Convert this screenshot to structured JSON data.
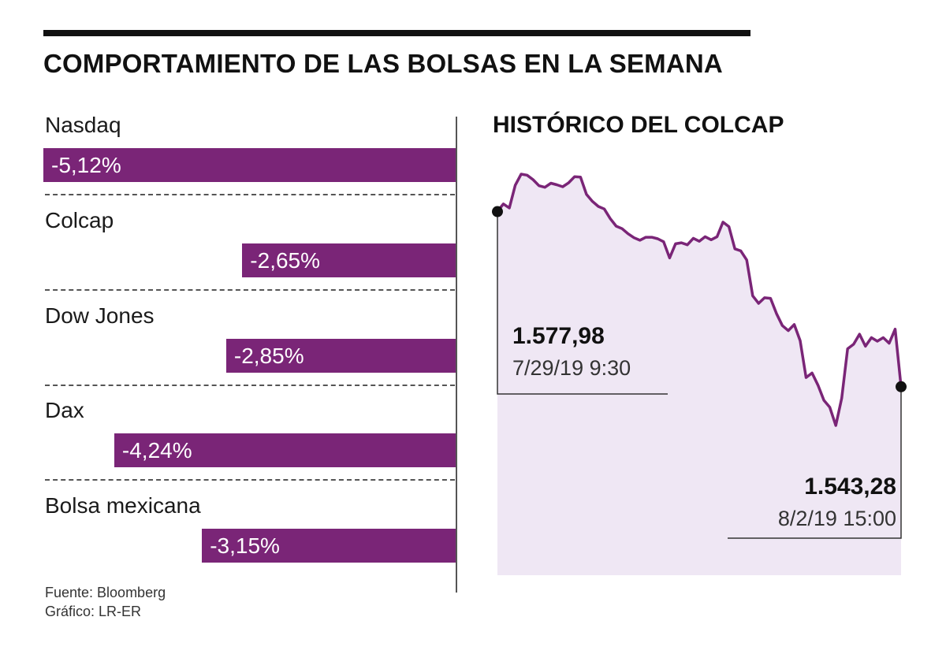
{
  "title": "COMPORTAMIENTO DE LAS BOLSAS EN LA SEMANA",
  "colors": {
    "bar": "#7a2577",
    "line": "#7a2577",
    "area": "#efe7f4"
  },
  "source": {
    "line1": "Fuente: Bloomberg",
    "line2": "Gráfico: LR-ER"
  },
  "chart_data": [
    {
      "type": "bar",
      "orientation": "horizontal",
      "categories": [
        "Nasdaq",
        "Colcap",
        "Dow Jones",
        "Dax",
        "Bolsa mexicana"
      ],
      "values": [
        -5.12,
        -2.65,
        -2.85,
        -4.24,
        -3.15
      ],
      "labels": [
        "-5,12%",
        "-2,65%",
        "-2,85%",
        "-4,24%",
        "-3,15%"
      ],
      "xlim": [
        -5.12,
        0
      ]
    },
    {
      "type": "area",
      "title": "HISTÓRICO DEL COLCAP",
      "values": [
        1577.98,
        1579.5,
        1578.7,
        1583.2,
        1585.4,
        1585.2,
        1584.3,
        1583.1,
        1582.8,
        1583.6,
        1583.3,
        1582.9,
        1583.7,
        1584.9,
        1584.8,
        1581.4,
        1580.0,
        1579.0,
        1578.5,
        1576.6,
        1575.1,
        1574.6,
        1573.6,
        1572.8,
        1572.3,
        1572.9,
        1572.9,
        1572.6,
        1572.0,
        1568.8,
        1571.6,
        1571.8,
        1571.4,
        1572.7,
        1572.1,
        1573.0,
        1572.4,
        1573.0,
        1575.9,
        1575.0,
        1570.6,
        1570.2,
        1568.4,
        1561.3,
        1559.8,
        1560.9,
        1560.8,
        1557.8,
        1555.4,
        1554.4,
        1555.6,
        1552.4,
        1545.1,
        1546.0,
        1543.6,
        1540.6,
        1539.2,
        1535.6,
        1541.0,
        1550.8,
        1551.7,
        1553.7,
        1551.3,
        1553.0,
        1552.3,
        1553.0,
        1551.9,
        1554.7,
        1543.28
      ],
      "start": {
        "value": "1.577,98",
        "date": "7/29/19 9:30"
      },
      "end": {
        "value": "1.543,28",
        "date": "8/2/19 15:00"
      }
    }
  ]
}
